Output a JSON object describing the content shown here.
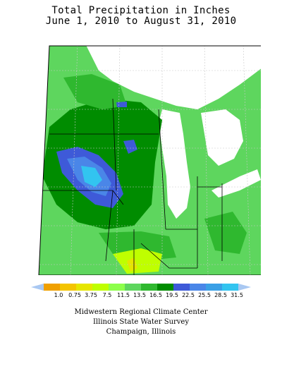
{
  "title": {
    "line1": "Total Precipitation in Inches",
    "line2": "June 1, 2010 to August 31, 2010"
  },
  "legend": {
    "bins": [
      {
        "label": "1.0",
        "color": "#f0a000"
      },
      {
        "label": "0.75",
        "color": "#f4c400"
      },
      {
        "label": "3.75",
        "color": "#e6e600"
      },
      {
        "label": "7.5",
        "color": "#bfff00"
      },
      {
        "label": "11.5",
        "color": "#8cff4a"
      },
      {
        "label": "13.5",
        "color": "#5ed65e"
      },
      {
        "label": "16.5",
        "color": "#2fb82f"
      },
      {
        "label": "19.5",
        "color": "#008c00"
      },
      {
        "label": "22.5",
        "color": "#3e5ad8"
      },
      {
        "label": "25.5",
        "color": "#4a86e8"
      },
      {
        "label": "28.5",
        "color": "#3aa0e6"
      },
      {
        "label": "31.5",
        "color": "#32c4f0"
      }
    ],
    "arrow_left_color": "#a9c8f2",
    "arrow_right_color": "#a9c8f2"
  },
  "credits": {
    "line1": "Midwestern Regional Climate Center",
    "line2": "Illinois State Water Survey",
    "line3": "Champaign, Illinois"
  },
  "map": {
    "background_color": "#5ed65e",
    "border_color": "#000000",
    "gridline_color": "#c8c8c8"
  }
}
